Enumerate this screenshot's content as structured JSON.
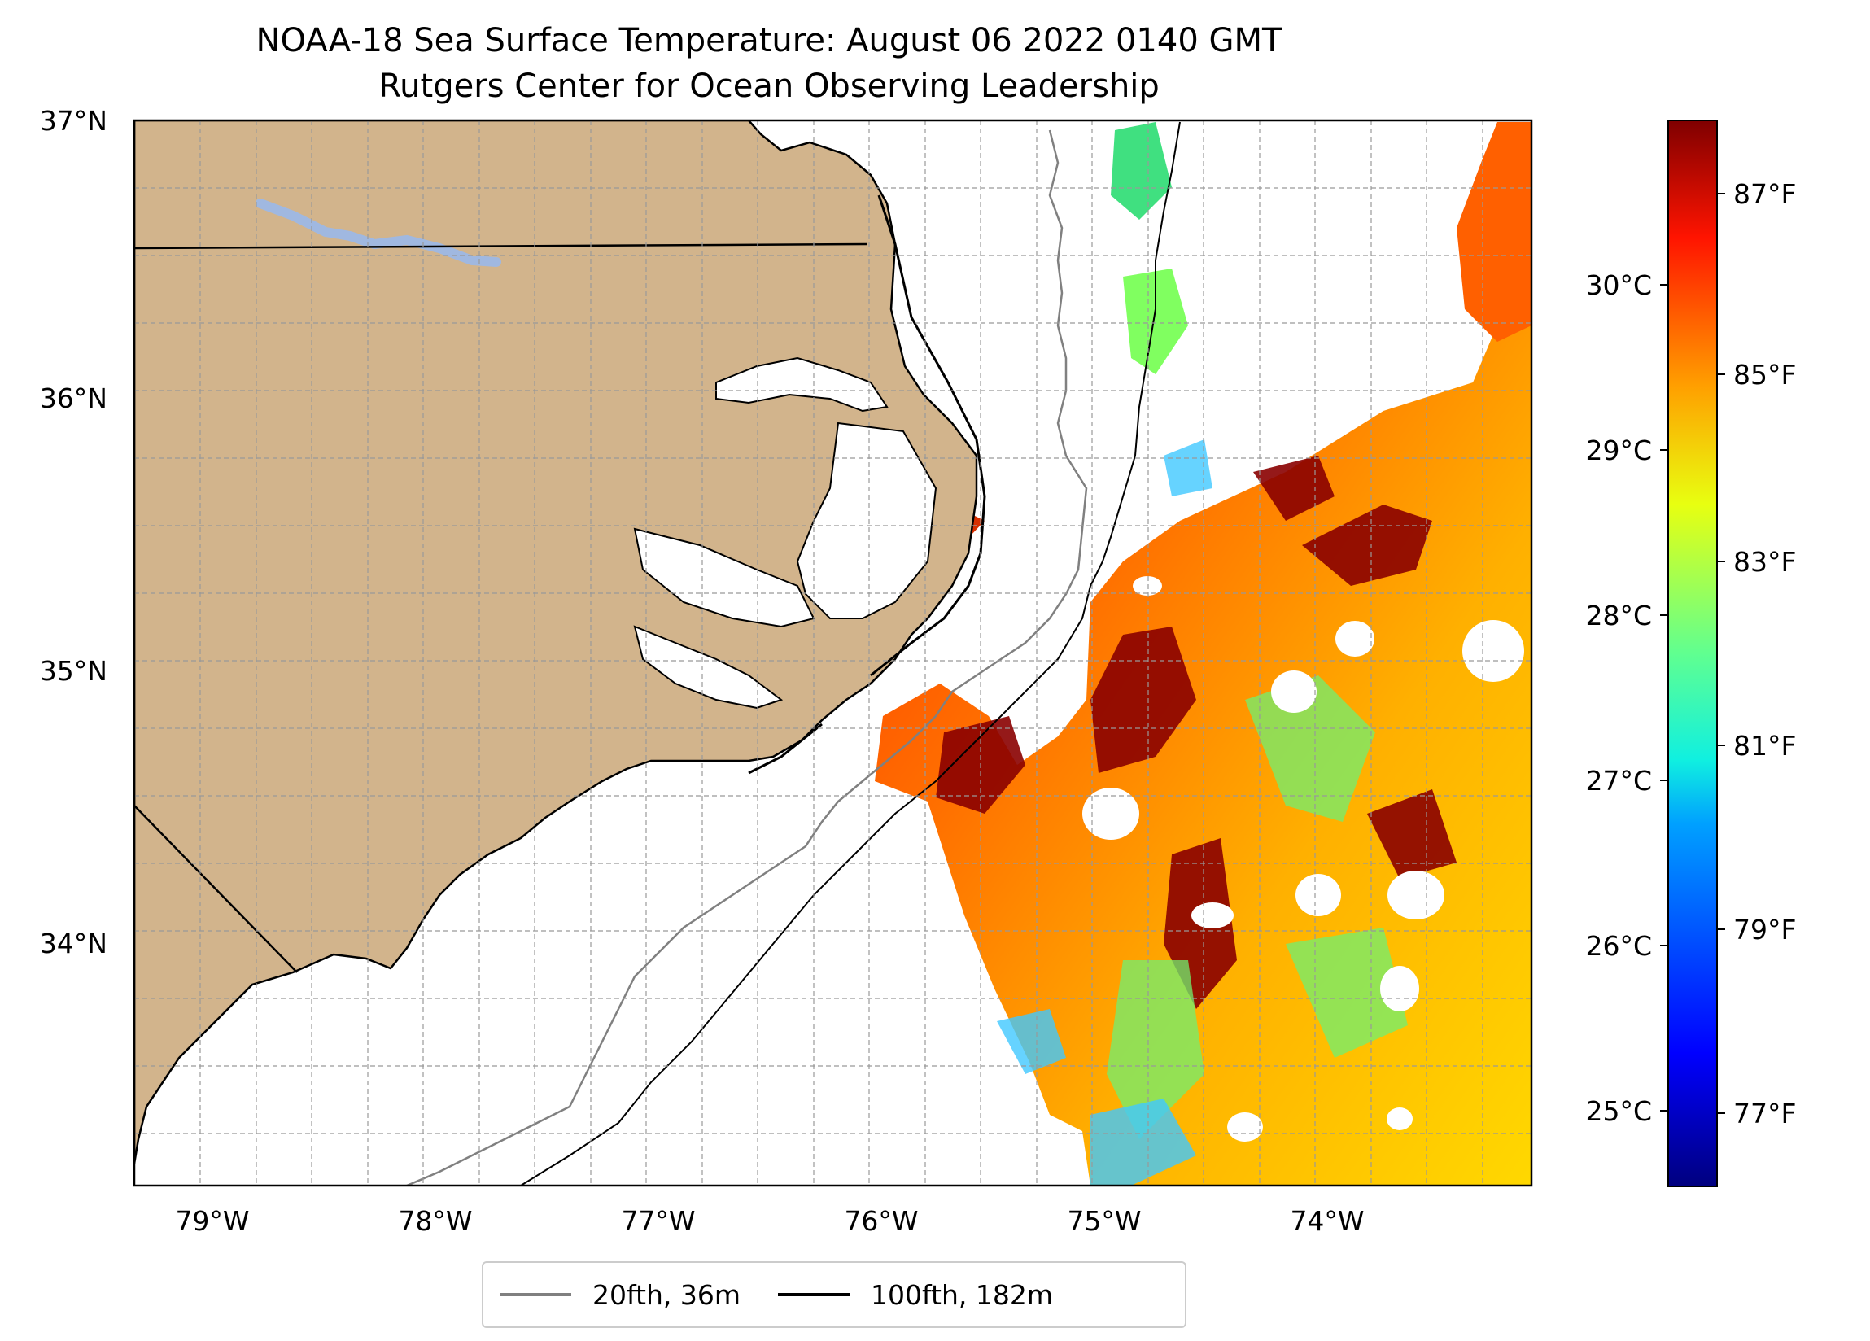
{
  "title": {
    "line1": "NOAA-18 Sea Surface Temperature: August 06 2022 0140 GMT",
    "line2": "Rutgers Center for Ocean Observing Leadership"
  },
  "map": {
    "lat_labels": [
      "37°N",
      "36°N",
      "35°N",
      "34°N"
    ],
    "lon_labels": [
      "79°W",
      "78°W",
      "77°W",
      "76°W",
      "75°W",
      "74°W"
    ],
    "extent": {
      "lon_min": -79.3,
      "lon_max": -73.1,
      "lat_min": 33.1,
      "lat_max": 37.0
    },
    "land_color": "#d2b48c",
    "lake_color": "#a0b8e0",
    "gridlines": true
  },
  "colorbar": {
    "colormap": "jet",
    "celsius_labels": [
      "30°C",
      "29°C",
      "28°C",
      "27°C",
      "26°C",
      "25°C"
    ],
    "fahrenheit_labels": [
      "87°F",
      "85°F",
      "83°F",
      "81°F",
      "79°F",
      "77°F"
    ]
  },
  "legend": {
    "items": [
      {
        "label": "20fth, 36m",
        "color": "#808080"
      },
      {
        "label": "100fth, 182m",
        "color": "#000000"
      }
    ]
  }
}
